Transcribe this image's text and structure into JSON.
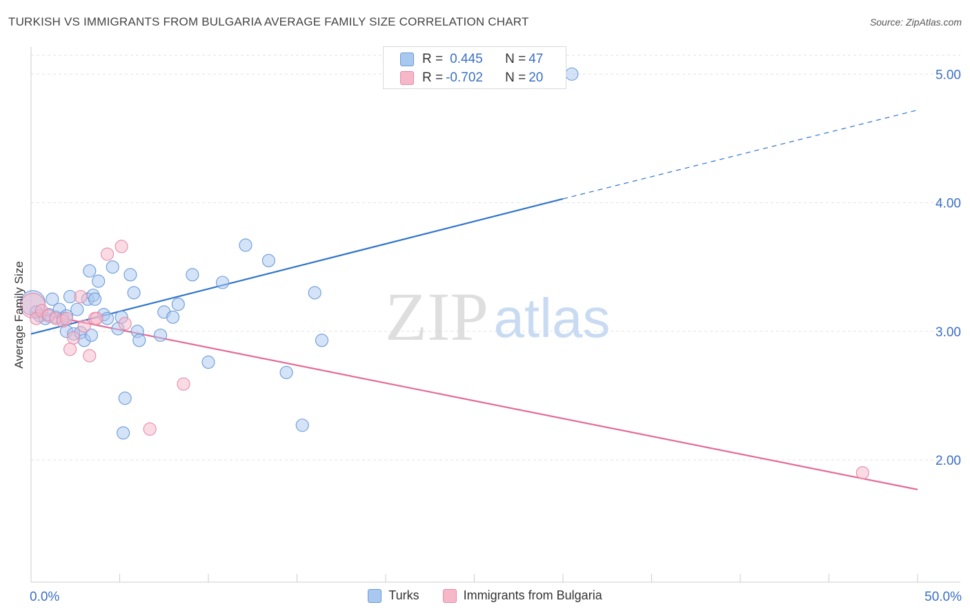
{
  "title": "TURKISH VS IMMIGRANTS FROM BULGARIA AVERAGE FAMILY SIZE CORRELATION CHART",
  "source": "Source: ZipAtlas.com",
  "watermark": {
    "zip": "ZIP",
    "atlas": "atlas"
  },
  "colors": {
    "turks_fill": "#a9c8f0",
    "turks_stroke": "#6a9ad8",
    "turks_line": "#2f74cc",
    "bulgaria_fill": "#f6b7c9",
    "bulgaria_stroke": "#e58aa8",
    "bulgaria_line": "#e46a96",
    "axis_label": "#3b6fc4"
  },
  "stats": {
    "turks": {
      "r_label": "R = ",
      "r_value": "0.445",
      "n_label": "N = ",
      "n_value": "47"
    },
    "bulgaria": {
      "r_label": "R = ",
      "r_value": "-0.702",
      "n_label": "N = ",
      "n_value": "20"
    }
  },
  "legend": {
    "turks": "Turks",
    "bulgaria": "Immigrants from Bulgaria"
  },
  "chart_data": {
    "type": "scatter",
    "title": "TURKISH VS IMMIGRANTS FROM BULGARIA AVERAGE FAMILY SIZE CORRELATION CHART",
    "xlabel": "",
    "ylabel": "Average Family Size",
    "xlim": [
      0,
      50
    ],
    "ylim": [
      1.05,
      5.2
    ],
    "x_tick_labels": [
      "0.0%",
      "50.0%"
    ],
    "y_ticks": [
      2.0,
      3.0,
      4.0,
      5.0
    ],
    "y_tick_labels": [
      "2.00",
      "3.00",
      "4.00",
      "5.00"
    ],
    "grid": true,
    "legend_position": "bottom",
    "series": [
      {
        "name": "Turks",
        "points": [
          [
            0.1,
            3.22
          ],
          [
            0.3,
            3.15
          ],
          [
            0.5,
            3.12
          ],
          [
            0.8,
            3.1
          ],
          [
            1.0,
            3.13
          ],
          [
            1.2,
            3.25
          ],
          [
            1.4,
            3.11
          ],
          [
            1.6,
            3.17
          ],
          [
            1.8,
            3.1
          ],
          [
            2.0,
            3.12
          ],
          [
            2.2,
            3.27
          ],
          [
            2.0,
            3.0
          ],
          [
            2.4,
            2.98
          ],
          [
            2.6,
            3.17
          ],
          [
            2.8,
            2.99
          ],
          [
            3.0,
            2.93
          ],
          [
            3.2,
            3.25
          ],
          [
            3.4,
            2.97
          ],
          [
            3.5,
            3.28
          ],
          [
            3.6,
            3.25
          ],
          [
            3.3,
            3.47
          ],
          [
            4.1,
            3.13
          ],
          [
            3.8,
            3.39
          ],
          [
            4.3,
            3.1
          ],
          [
            4.6,
            3.5
          ],
          [
            4.9,
            3.02
          ],
          [
            5.1,
            3.11
          ],
          [
            5.6,
            3.44
          ],
          [
            5.8,
            3.3
          ],
          [
            6.0,
            3.0
          ],
          [
            6.1,
            2.93
          ],
          [
            5.3,
            2.48
          ],
          [
            5.2,
            2.21
          ],
          [
            7.3,
            2.97
          ],
          [
            7.5,
            3.15
          ],
          [
            8.0,
            3.11
          ],
          [
            8.3,
            3.21
          ],
          [
            9.1,
            3.44
          ],
          [
            10.0,
            2.76
          ],
          [
            10.8,
            3.38
          ],
          [
            12.1,
            3.67
          ],
          [
            13.4,
            3.55
          ],
          [
            14.4,
            2.68
          ],
          [
            15.3,
            2.27
          ],
          [
            16.0,
            3.3
          ],
          [
            16.4,
            2.93
          ],
          [
            30.5,
            5.0
          ]
        ]
      },
      {
        "name": "Immigrants from Bulgaria",
        "points": [
          [
            0.1,
            3.2
          ],
          [
            0.3,
            3.1
          ],
          [
            0.6,
            3.16
          ],
          [
            1.0,
            3.12
          ],
          [
            1.4,
            3.1
          ],
          [
            1.8,
            3.08
          ],
          [
            2.0,
            3.1
          ],
          [
            2.2,
            2.86
          ],
          [
            2.4,
            2.95
          ],
          [
            2.8,
            3.27
          ],
          [
            3.0,
            3.04
          ],
          [
            3.3,
            2.81
          ],
          [
            3.6,
            3.1
          ],
          [
            3.7,
            3.1
          ],
          [
            4.3,
            3.6
          ],
          [
            5.1,
            3.66
          ],
          [
            5.3,
            3.06
          ],
          [
            6.7,
            2.24
          ],
          [
            8.6,
            2.59
          ],
          [
            46.9,
            1.9
          ]
        ]
      }
    ],
    "trendlines": [
      {
        "series": "Turks",
        "solid": [
          [
            0,
            2.98
          ],
          [
            30,
            4.03
          ]
        ],
        "dashed": [
          [
            30,
            4.03
          ],
          [
            50,
            4.72
          ]
        ]
      },
      {
        "series": "Immigrants from Bulgaria",
        "solid": [
          [
            0,
            3.15
          ],
          [
            50,
            1.77
          ]
        ]
      }
    ]
  }
}
